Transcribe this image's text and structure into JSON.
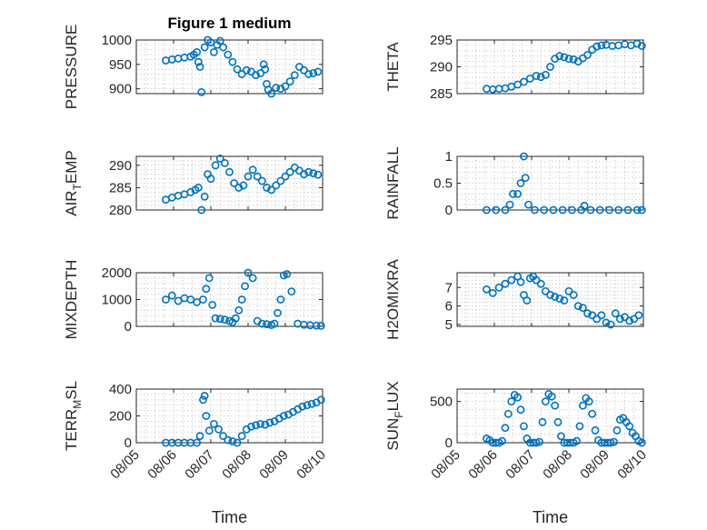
{
  "figure": {
    "title": "Figure 1 medium",
    "marker_color": "#0072BD",
    "grid": true
  },
  "chart_data": [
    {
      "type": "scatter",
      "ylabel": "PRESSURE",
      "ylim": [
        890,
        1000
      ],
      "yticks": [
        900,
        950,
        1000
      ],
      "show_xticks": false,
      "x": [
        "08/05 19:00",
        "08/05 23:00",
        "08/06 03:00",
        "08/06 07:00",
        "08/06 11:00",
        "08/06 13:00",
        "08/06 15:00",
        "08/06 16:00",
        "08/06 17:00",
        "08/06 18:00",
        "08/06 20:00",
        "08/06 22:00",
        "08/07 00:00",
        "08/07 02:00",
        "08/07 04:00",
        "08/07 06:00",
        "08/07 08:00",
        "08/07 11:00",
        "08/07 14:00",
        "08/07 17:00",
        "08/07 20:00",
        "08/07 23:00",
        "08/08 02:00",
        "08/08 05:00",
        "08/08 08:00",
        "08/08 10:00",
        "08/08 11:00",
        "08/08 12:00",
        "08/08 13:00",
        "08/08 15:00",
        "08/08 18:00",
        "08/08 21:00",
        "08/09 00:00",
        "08/09 03:00",
        "08/09 06:00",
        "08/09 09:00",
        "08/09 12:00",
        "08/09 15:00",
        "08/09 18:00",
        "08/09 21:00"
      ],
      "y": [
        958,
        960,
        962,
        964,
        966,
        970,
        975,
        955,
        945,
        893,
        985,
        1000,
        995,
        975,
        990,
        998,
        985,
        970,
        955,
        940,
        930,
        938,
        935,
        928,
        932,
        950,
        940,
        910,
        898,
        890,
        902,
        900,
        905,
        915,
        928,
        945,
        938,
        930,
        932,
        935
      ]
    },
    {
      "type": "scatter",
      "ylabel": "THETA",
      "ylim": [
        285,
        295
      ],
      "yticks": [
        285,
        290,
        295
      ],
      "show_xticks": false,
      "x": [
        "08/05 19:00",
        "08/05 23:00",
        "08/06 03:00",
        "08/06 07:00",
        "08/06 11:00",
        "08/06 15:00",
        "08/06 19:00",
        "08/06 23:00",
        "08/07 03:00",
        "08/07 06:00",
        "08/07 09:00",
        "08/07 12:00",
        "08/07 15:00",
        "08/07 18:00",
        "08/07 21:00",
        "08/08 00:00",
        "08/08 03:00",
        "08/08 06:00",
        "08/08 09:00",
        "08/08 12:00",
        "08/08 15:00",
        "08/08 18:00",
        "08/08 21:00",
        "08/09 00:00",
        "08/09 04:00",
        "08/09 08:00",
        "08/09 12:00",
        "08/09 16:00",
        "08/09 20:00",
        "08/09 23:00"
      ],
      "y": [
        285.9,
        285.8,
        285.9,
        286.0,
        286.3,
        286.7,
        287.2,
        287.8,
        288.3,
        288.1,
        288.5,
        290.0,
        291.5,
        292.0,
        291.8,
        291.5,
        291.4,
        291.0,
        291.6,
        292.2,
        293.2,
        293.8,
        294.0,
        294.1,
        293.9,
        294.0,
        294.2,
        294.0,
        294.3,
        293.9
      ]
    },
    {
      "type": "scatter",
      "ylabel": "AIR_TEMP",
      "ylim": [
        280,
        292
      ],
      "yticks": [
        280,
        285,
        290
      ],
      "show_xticks": false,
      "x": [
        "08/05 19:00",
        "08/05 23:00",
        "08/06 03:00",
        "08/06 07:00",
        "08/06 11:00",
        "08/06 14:00",
        "08/06 16:00",
        "08/06 18:00",
        "08/06 20:00",
        "08/06 22:00",
        "08/07 00:00",
        "08/07 03:00",
        "08/07 06:00",
        "08/07 09:00",
        "08/07 12:00",
        "08/07 15:00",
        "08/07 18:00",
        "08/07 21:00",
        "08/08 00:00",
        "08/08 03:00",
        "08/08 06:00",
        "08/08 09:00",
        "08/08 12:00",
        "08/08 15:00",
        "08/08 18:00",
        "08/08 21:00",
        "08/09 00:00",
        "08/09 03:00",
        "08/09 06:00",
        "08/09 09:00",
        "08/09 12:00",
        "08/09 15:00",
        "08/09 18:00",
        "08/09 21:00"
      ],
      "y": [
        282.3,
        282.8,
        283.2,
        283.5,
        284.0,
        284.5,
        285.0,
        280.0,
        283.0,
        288.0,
        287.0,
        290.0,
        291.5,
        290.5,
        288.5,
        286.0,
        285.0,
        285.5,
        287.5,
        289.0,
        287.5,
        286.5,
        285.0,
        284.5,
        285.5,
        286.5,
        287.5,
        288.5,
        289.5,
        288.8,
        288.0,
        288.5,
        288.2,
        287.9
      ]
    },
    {
      "type": "scatter",
      "ylabel": "RAINFALL",
      "ylim": [
        0,
        1
      ],
      "yticks": [
        0,
        0.5,
        1
      ],
      "show_xticks": false,
      "x": [
        "08/05 19:00",
        "08/06 01:00",
        "08/06 07:00",
        "08/06 10:00",
        "08/06 12:00",
        "08/06 15:00",
        "08/06 17:00",
        "08/06 19:00",
        "08/06 20:00",
        "08/06 22:00",
        "08/07 02:00",
        "08/07 08:00",
        "08/07 14:00",
        "08/07 20:00",
        "08/08 02:00",
        "08/08 08:00",
        "08/08 10:00",
        "08/08 14:00",
        "08/08 20:00",
        "08/09 02:00",
        "08/09 08:00",
        "08/09 14:00",
        "08/09 20:00",
        "08/09 23:00"
      ],
      "y": [
        0,
        0,
        0,
        0.1,
        0.3,
        0.3,
        0.5,
        1.0,
        0.6,
        0.1,
        0,
        0,
        0,
        0,
        0,
        0,
        0.08,
        0,
        0,
        0,
        0,
        0,
        0,
        0
      ]
    },
    {
      "type": "scatter",
      "ylabel": "MIXDEPTH",
      "ylim": [
        0,
        2000
      ],
      "yticks": [
        0,
        1000,
        2000
      ],
      "show_xticks": false,
      "x": [
        "08/05 19:00",
        "08/05 23:00",
        "08/06 03:00",
        "08/06 07:00",
        "08/06 11:00",
        "08/06 15:00",
        "08/06 19:00",
        "08/06 21:00",
        "08/06 23:00",
        "08/07 01:00",
        "08/07 03:00",
        "08/07 06:00",
        "08/07 09:00",
        "08/07 12:00",
        "08/07 14:00",
        "08/07 16:00",
        "08/07 18:00",
        "08/07 20:00",
        "08/07 22:00",
        "08/08 00:00",
        "08/08 03:00",
        "08/08 06:00",
        "08/08 09:00",
        "08/08 12:00",
        "08/08 15:00",
        "08/08 17:00",
        "08/08 19:00",
        "08/08 21:00",
        "08/08 23:00",
        "08/09 01:00",
        "08/09 04:00",
        "08/09 08:00",
        "08/09 12:00",
        "08/09 16:00",
        "08/09 20:00",
        "08/09 23:00"
      ],
      "y": [
        1000,
        1150,
        950,
        1050,
        1000,
        900,
        1000,
        1400,
        1800,
        800,
        300,
        280,
        250,
        200,
        150,
        300,
        600,
        1000,
        1500,
        2000,
        1800,
        200,
        100,
        80,
        50,
        100,
        500,
        1000,
        1900,
        1950,
        1300,
        100,
        60,
        40,
        30,
        20
      ]
    },
    {
      "type": "scatter",
      "ylabel": "H2OMIXRA",
      "ylim": [
        4.9,
        7.8
      ],
      "yticks": [
        5,
        6,
        7
      ],
      "show_xticks": false,
      "x": [
        "08/05 19:00",
        "08/05 23:00",
        "08/06 03:00",
        "08/06 07:00",
        "08/06 11:00",
        "08/06 15:00",
        "08/06 17:00",
        "08/06 19:00",
        "08/06 21:00",
        "08/06 23:00",
        "08/07 01:00",
        "08/07 03:00",
        "08/07 06:00",
        "08/07 09:00",
        "08/07 12:00",
        "08/07 15:00",
        "08/07 18:00",
        "08/07 21:00",
        "08/08 00:00",
        "08/08 03:00",
        "08/08 06:00",
        "08/08 09:00",
        "08/08 12:00",
        "08/08 15:00",
        "08/08 18:00",
        "08/08 21:00",
        "08/09 00:00",
        "08/09 03:00",
        "08/09 06:00",
        "08/09 09:00",
        "08/09 12:00",
        "08/09 15:00",
        "08/09 18:00",
        "08/09 21:00"
      ],
      "y": [
        6.9,
        6.7,
        7.0,
        7.2,
        7.4,
        7.6,
        7.3,
        6.6,
        6.3,
        7.5,
        7.6,
        7.4,
        7.2,
        6.8,
        6.6,
        6.5,
        6.4,
        6.3,
        6.8,
        6.6,
        6.0,
        5.9,
        5.6,
        5.5,
        5.3,
        5.5,
        5.1,
        5.0,
        5.6,
        5.3,
        5.4,
        5.2,
        5.3,
        5.5
      ]
    },
    {
      "type": "scatter",
      "ylabel": "TERR_MSL",
      "ylim": [
        0,
        400
      ],
      "yticks": [
        0,
        200,
        400
      ],
      "show_xticks": true,
      "xlabel": "Time",
      "x": [
        "08/05 19:00",
        "08/05 23:00",
        "08/06 03:00",
        "08/06 07:00",
        "08/06 11:00",
        "08/06 15:00",
        "08/06 17:00",
        "08/06 19:00",
        "08/06 20:00",
        "08/06 21:00",
        "08/06 23:00",
        "08/07 02:00",
        "08/07 05:00",
        "08/07 08:00",
        "08/07 11:00",
        "08/07 14:00",
        "08/07 17:00",
        "08/07 20:00",
        "08/07 23:00",
        "08/08 02:00",
        "08/08 05:00",
        "08/08 08:00",
        "08/08 11:00",
        "08/08 14:00",
        "08/08 17:00",
        "08/08 20:00",
        "08/08 23:00",
        "08/09 02:00",
        "08/09 05:00",
        "08/09 08:00",
        "08/09 11:00",
        "08/09 14:00",
        "08/09 17:00",
        "08/09 20:00",
        "08/09 23:00"
      ],
      "y": [
        0,
        0,
        0,
        0,
        0,
        0,
        50,
        320,
        350,
        200,
        90,
        140,
        100,
        50,
        20,
        10,
        0,
        50,
        100,
        120,
        130,
        140,
        135,
        150,
        160,
        180,
        200,
        210,
        230,
        250,
        270,
        280,
        290,
        300,
        320
      ]
    },
    {
      "type": "scatter",
      "ylabel": "SUN_FLUX",
      "ylim": [
        0,
        650
      ],
      "yticks": [
        0,
        500
      ],
      "show_xticks": true,
      "xlabel": "Time",
      "x": [
        "08/05 19:00",
        "08/05 21:00",
        "08/05 23:00",
        "08/06 01:00",
        "08/06 03:00",
        "08/06 05:00",
        "08/06 07:00",
        "08/06 09:00",
        "08/06 11:00",
        "08/06 13:00",
        "08/06 15:00",
        "08/06 17:00",
        "08/06 19:00",
        "08/06 21:00",
        "08/06 23:00",
        "08/07 01:00",
        "08/07 03:00",
        "08/07 05:00",
        "08/07 07:00",
        "08/07 09:00",
        "08/07 11:00",
        "08/07 13:00",
        "08/07 15:00",
        "08/07 17:00",
        "08/07 19:00",
        "08/07 21:00",
        "08/07 23:00",
        "08/08 01:00",
        "08/08 03:00",
        "08/08 05:00",
        "08/08 07:00",
        "08/08 09:00",
        "08/08 11:00",
        "08/08 13:00",
        "08/08 15:00",
        "08/08 17:00",
        "08/08 19:00",
        "08/08 21:00",
        "08/08 23:00",
        "08/09 01:00",
        "08/09 03:00",
        "08/09 05:00",
        "08/09 07:00",
        "08/09 09:00",
        "08/09 11:00",
        "08/09 13:00",
        "08/09 15:00",
        "08/09 17:00",
        "08/09 19:00",
        "08/09 21:00",
        "08/09 23:00"
      ],
      "y": [
        50,
        30,
        0,
        0,
        0,
        20,
        180,
        350,
        500,
        580,
        550,
        400,
        200,
        50,
        0,
        0,
        0,
        10,
        250,
        500,
        590,
        560,
        450,
        250,
        80,
        0,
        0,
        0,
        0,
        20,
        200,
        450,
        540,
        500,
        350,
        150,
        30,
        0,
        0,
        0,
        0,
        10,
        150,
        280,
        300,
        250,
        200,
        120,
        80,
        20,
        0
      ]
    }
  ],
  "x_axis": {
    "range": [
      "08/05 00:00",
      "08/10 00:00"
    ],
    "tick_labels": [
      "08/05",
      "08/06",
      "08/07",
      "08/08",
      "08/09",
      "08/10"
    ]
  }
}
